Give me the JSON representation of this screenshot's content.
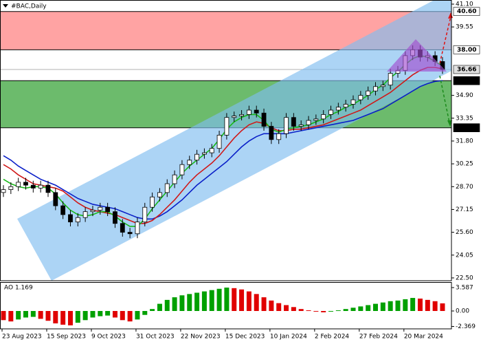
{
  "chart_data": [
    {
      "type": "candlestick",
      "title": "#BAC,Daily",
      "open": [
        28.3,
        28.5,
        28.7,
        29.0,
        28.8,
        28.6,
        28.8,
        28.3,
        27.4,
        26.8,
        26.3,
        26.6,
        27.0,
        27.1,
        27.3,
        27.0,
        26.2,
        25.6,
        25.5,
        26.3,
        27.3,
        28.0,
        28.3,
        28.9,
        29.5,
        30.2,
        30.5,
        30.9,
        31.0,
        31.3,
        32.2,
        33.4,
        33.5,
        33.6,
        33.9,
        33.7,
        32.8,
        31.9,
        32.3,
        33.4,
        32.8,
        32.9,
        33.2,
        33.3,
        33.6,
        33.9,
        34.1,
        34.3,
        34.6,
        34.9,
        35.2,
        35.5,
        35.6,
        36.4,
        36.6,
        37.6,
        38.0,
        37.5,
        37.6,
        37.2
      ],
      "high": [
        28.8,
        29.0,
        29.3,
        29.3,
        29.1,
        29.1,
        29.1,
        28.6,
        27.7,
        27.1,
        26.9,
        27.3,
        27.4,
        27.6,
        27.6,
        27.3,
        26.5,
        25.9,
        26.6,
        27.6,
        28.3,
        28.6,
        29.2,
        29.8,
        30.5,
        30.8,
        31.2,
        31.3,
        31.6,
        32.5,
        33.7,
        33.8,
        33.9,
        34.2,
        34.2,
        34.0,
        33.1,
        32.6,
        33.7,
        33.7,
        33.2,
        33.5,
        33.6,
        33.9,
        34.2,
        34.4,
        34.6,
        34.9,
        35.2,
        35.5,
        35.8,
        35.9,
        36.7,
        36.9,
        37.9,
        38.3,
        38.3,
        37.9,
        37.9,
        37.5
      ],
      "low": [
        28.0,
        28.2,
        28.4,
        28.5,
        28.3,
        28.3,
        28.0,
        27.1,
        26.5,
        26.0,
        26.0,
        26.3,
        26.7,
        26.8,
        26.7,
        25.9,
        25.3,
        25.2,
        25.2,
        26.0,
        27.0,
        27.7,
        28.0,
        28.6,
        29.2,
        29.9,
        30.2,
        30.6,
        30.7,
        31.0,
        31.9,
        33.1,
        33.2,
        33.3,
        33.4,
        32.5,
        31.6,
        31.6,
        32.0,
        32.5,
        32.5,
        32.6,
        32.9,
        33.0,
        33.3,
        33.6,
        33.8,
        34.0,
        34.3,
        34.6,
        34.9,
        35.2,
        35.3,
        36.1,
        36.3,
        37.3,
        37.2,
        37.2,
        36.9,
        36.36
      ],
      "close": [
        28.5,
        28.7,
        29.0,
        28.8,
        28.6,
        28.8,
        28.3,
        27.4,
        26.8,
        26.3,
        26.6,
        27.0,
        27.1,
        27.3,
        27.0,
        26.2,
        25.6,
        25.5,
        26.3,
        27.3,
        28.0,
        28.3,
        28.9,
        29.5,
        30.2,
        30.5,
        30.9,
        31.0,
        31.3,
        32.2,
        33.4,
        33.5,
        33.6,
        33.9,
        33.7,
        32.8,
        31.9,
        32.3,
        33.4,
        32.8,
        32.9,
        33.2,
        33.3,
        33.6,
        33.9,
        34.1,
        34.3,
        34.6,
        34.9,
        35.2,
        35.5,
        35.6,
        36.4,
        36.6,
        37.6,
        38.0,
        37.5,
        37.6,
        37.2,
        36.66
      ],
      "up_color": "#ffffff",
      "down_color": "#000000",
      "lines": [
        {
          "color": "#0a1fc8",
          "values": [
            30.8,
            30.5,
            30.1,
            29.8,
            29.5,
            29.2,
            29.0,
            28.8,
            28.5,
            28.2,
            27.9,
            27.7,
            27.5,
            27.4,
            27.3,
            27.2,
            27.0,
            26.8,
            26.6,
            26.5,
            26.5,
            26.7,
            27.0,
            27.4,
            27.8,
            28.3,
            28.8,
            29.2,
            29.6,
            30.0,
            30.4,
            30.9,
            31.4,
            31.8,
            32.1,
            32.3,
            32.3,
            32.3,
            32.3,
            32.4,
            32.5,
            32.6,
            32.7,
            32.8,
            32.9,
            33.0,
            33.1,
            33.2,
            33.4,
            33.6,
            33.8,
            34.0,
            34.3,
            34.6,
            34.9,
            35.2,
            35.5,
            35.7,
            35.85,
            35.9
          ]
        },
        {
          "color": "#d01818",
          "values": [
            30.2,
            29.9,
            29.5,
            29.2,
            28.9,
            28.8,
            28.7,
            28.6,
            28.4,
            28.0,
            27.6,
            27.3,
            27.1,
            27.0,
            26.9,
            26.8,
            26.6,
            26.4,
            26.2,
            26.2,
            26.4,
            26.8,
            27.3,
            27.8,
            28.4,
            29.0,
            29.5,
            29.9,
            30.3,
            30.8,
            31.4,
            32.0,
            32.5,
            32.9,
            33.1,
            33.0,
            32.7,
            32.5,
            32.5,
            32.6,
            32.6,
            32.7,
            32.8,
            32.9,
            33.1,
            33.3,
            33.5,
            33.7,
            33.9,
            34.2,
            34.5,
            34.8,
            35.1,
            35.5,
            35.9,
            36.3,
            36.6,
            36.8,
            36.8,
            36.7
          ]
        },
        {
          "color": "#18b818",
          "values": [
            29.2,
            28.9,
            28.7,
            28.6,
            28.7,
            28.7,
            28.6,
            28.2,
            27.6,
            27.1,
            26.8,
            26.7,
            26.8,
            27.0,
            27.0,
            26.7,
            26.3,
            26.0,
            26.0,
            26.5,
            27.2,
            27.8,
            28.4,
            29.0,
            29.6,
            30.1,
            30.5,
            30.9,
            31.3,
            31.9,
            32.6,
            33.1,
            33.4,
            33.6,
            33.6,
            33.2,
            32.6,
            32.4,
            32.6,
            32.7,
            32.8,
            32.9,
            33.1,
            33.3,
            33.6,
            33.8,
            34.1,
            34.3,
            34.6,
            34.9,
            35.3,
            35.6,
            36.1,
            36.5,
            37.0,
            37.4,
            37.6,
            37.5,
            37.2,
            36.9
          ]
        }
      ],
      "zones": [
        {
          "from": 38,
          "to": 40.6,
          "color": "#ffa3a3"
        },
        {
          "from": 32.7,
          "to": 35.9,
          "color": "#6cbb6c"
        }
      ],
      "levels": [
        {
          "value": 40.6,
          "label": "40.60",
          "line_color": "#000000",
          "fill": "#ffffff",
          "text_color": "#000000"
        },
        {
          "value": 38,
          "label": "38.00",
          "line_color": "#000000",
          "fill": "#ffffff",
          "text_color": "#000000"
        },
        {
          "value": 36.66,
          "label": "36.66",
          "line_color": "#b0b0b0",
          "fill": "#e0e0e0",
          "text_color": "#000000"
        },
        {
          "value": 35.9,
          "label": "35.90",
          "line_color": "#000000",
          "fill": "#000000",
          "text_color": "#ffffff"
        },
        {
          "value": 32.7,
          "label": "32.70",
          "line_color": "#000000",
          "fill": "#000000",
          "text_color": "#ffffff"
        }
      ],
      "ylim": [
        22.31,
        41.38
      ],
      "yticks": [
        {
          "value": 41.1,
          "label": "41.10"
        },
        39.55,
        {
          "value": 34.9,
          "label": "34.90"
        },
        33.35,
        {
          "value": 31.8,
          "label": "31.80"
        },
        30.25,
        {
          "value": 28.7,
          "label": "28.70"
        },
        27.15,
        {
          "value": 25.6,
          "label": "25.60"
        },
        24.05,
        {
          "value": 22.5,
          "label": "22.50"
        }
      ]
    },
    {
      "type": "bar",
      "title": "AO 1.169",
      "categories": [
        "23 Aug 2023",
        null,
        null,
        null,
        null,
        null,
        "15 Sep 2023",
        null,
        null,
        null,
        null,
        null,
        "9 Oct 2023",
        null,
        null,
        null,
        null,
        null,
        "31 Oct 2023",
        null,
        null,
        null,
        null,
        null,
        "22 Nov 2023",
        null,
        null,
        null,
        null,
        null,
        "15 Dec 2023",
        null,
        null,
        null,
        null,
        null,
        "10 Jan 2024",
        null,
        null,
        null,
        null,
        null,
        "2 Feb 2024",
        null,
        null,
        null,
        null,
        null,
        "27 Feb 2024",
        null,
        null,
        null,
        null,
        null,
        "20 Mar 2024",
        null,
        null,
        null,
        null,
        null
      ],
      "values": [
        -1.4,
        -1.6,
        -1.3,
        -1.0,
        -0.9,
        -1.2,
        -1.5,
        -1.9,
        -2.1,
        -2.2,
        -1.8,
        -1.4,
        -1.0,
        -0.8,
        -0.7,
        -1.0,
        -1.4,
        -1.6,
        -1.3,
        -0.6,
        0.3,
        1.1,
        1.7,
        2.1,
        2.4,
        2.6,
        2.8,
        3.0,
        3.2,
        3.4,
        3.587,
        3.5,
        3.3,
        3.0,
        2.6,
        2.1,
        1.6,
        1.2,
        0.9,
        0.6,
        0.3,
        0.1,
        -0.1,
        -0.2,
        -0.1,
        0.1,
        0.3,
        0.5,
        0.7,
        0.9,
        1.1,
        1.3,
        1.5,
        1.6,
        1.8,
        2.0,
        1.9,
        1.7,
        1.5,
        1.169
      ],
      "up_color": "#00a000",
      "down_color": "#e00000",
      "ylim": [
        -2.74,
        4.43
      ],
      "yticks": [
        3.587,
        {
          "value": 0,
          "label": "0.00"
        },
        -2.369
      ]
    }
  ]
}
